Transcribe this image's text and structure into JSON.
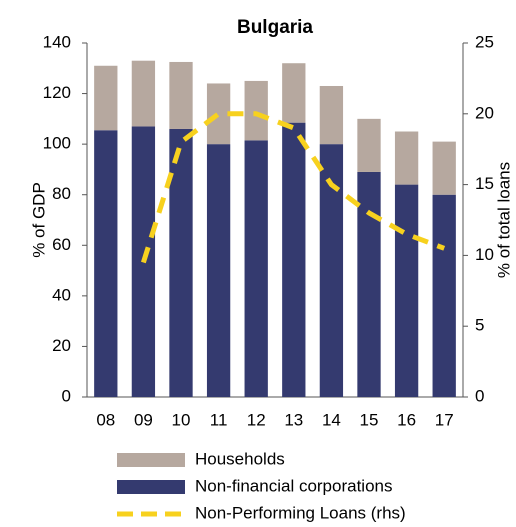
{
  "chart_data": {
    "type": "bar",
    "title": "Bulgaria",
    "categories": [
      "08",
      "09",
      "10",
      "11",
      "12",
      "13",
      "14",
      "15",
      "16",
      "17"
    ],
    "series": [
      {
        "name": "Non-financial corporations",
        "color": "#343a6f",
        "values": [
          105.5,
          107,
          106,
          100,
          101.5,
          108.5,
          100,
          89,
          84,
          80
        ]
      },
      {
        "name": "Households",
        "color": "#b6a89f",
        "values": [
          25.5,
          26,
          26.5,
          24,
          23.5,
          23.5,
          23,
          21,
          21,
          21
        ]
      },
      {
        "name": "Non-Performing Loans (rhs)",
        "color": "#f7d11e",
        "axis": "y2",
        "type": "line",
        "values": [
          null,
          9.5,
          18,
          20,
          20,
          19,
          15,
          13,
          11.5,
          10.5
        ]
      }
    ],
    "stacked": true,
    "ylabel": "% of GDP",
    "y2label": "% of total loans",
    "ylim": [
      0,
      140
    ],
    "yticks": [
      0,
      20,
      40,
      60,
      80,
      100,
      120,
      140
    ],
    "y2lim": [
      0,
      25
    ],
    "y2ticks": [
      0,
      5,
      10,
      15,
      20,
      25
    ],
    "grid": false
  }
}
